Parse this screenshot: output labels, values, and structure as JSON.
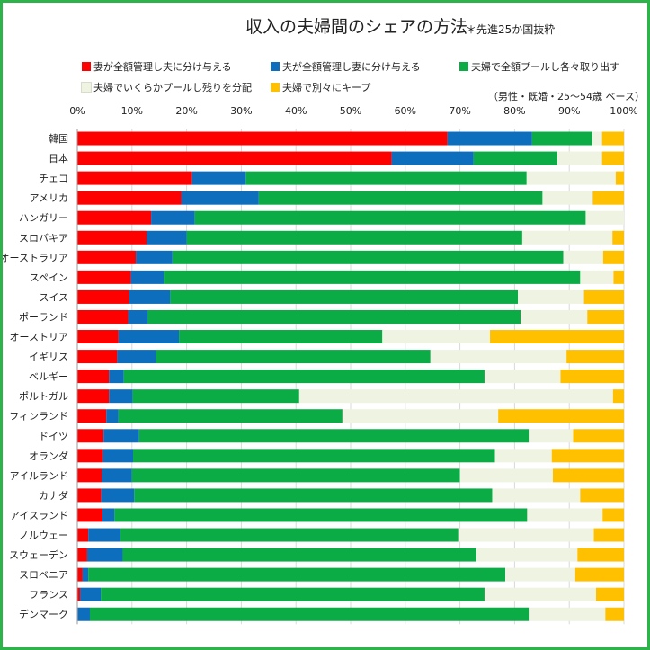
{
  "chart_data": {
    "type": "bar",
    "orientation": "horizontal",
    "stacked": true,
    "title": "収入の夫婦間のシェアの方法",
    "subtitle": "＊先進25か国抜粋",
    "note": "（男性・既婚・25～54歳 ベース）",
    "xlim": [
      0,
      100
    ],
    "x_ticks": [
      "0%",
      "10%",
      "20%",
      "30%",
      "40%",
      "50%",
      "60%",
      "70%",
      "80%",
      "90%",
      "100%"
    ],
    "grid": true,
    "legend_position": "top",
    "categories": [
      "韓国",
      "日本",
      "チェコ",
      "アメリカ",
      "ハンガリー",
      "スロバキア",
      "オーストラリア",
      "スペイン",
      "スイス",
      "ポーランド",
      "オーストリア",
      "イギリス",
      "ベルギー",
      "ポルトガル",
      "フィンランド",
      "ドイツ",
      "オランダ",
      "アイルランド",
      "カナダ",
      "アイスランド",
      "ノルウェー",
      "スウェーデン",
      "スロベニア",
      "フランス",
      "デンマーク"
    ],
    "series": [
      {
        "name": "妻が全額管理し夫に分け与える",
        "color": "#ff0000",
        "values": [
          67.7,
          57.5,
          21.0,
          19.0,
          13.5,
          12.7,
          10.7,
          9.8,
          9.5,
          9.3,
          7.5,
          7.3,
          5.8,
          5.8,
          5.3,
          4.8,
          4.7,
          4.5,
          4.4,
          4.6,
          2.0,
          1.8,
          0.9,
          0.5,
          0.1
        ]
      },
      {
        "name": "夫が全額管理し妻に分け与える",
        "color": "#0d6ebe",
        "values": [
          15.5,
          15.0,
          9.8,
          14.2,
          8.0,
          7.3,
          6.7,
          6.0,
          7.5,
          3.6,
          11.1,
          7.1,
          2.7,
          4.3,
          2.2,
          6.5,
          5.5,
          5.5,
          6.0,
          2.2,
          5.9,
          6.5,
          1.1,
          3.8,
          2.2
        ]
      },
      {
        "name": "夫婦で全額プールし各々取り出す",
        "color": "#0bab46",
        "values": [
          11.0,
          15.3,
          51.4,
          51.9,
          71.5,
          61.4,
          71.5,
          76.2,
          63.6,
          68.2,
          37.2,
          50.2,
          66.0,
          30.5,
          41.0,
          71.3,
          66.2,
          60.0,
          65.5,
          75.5,
          61.8,
          64.7,
          76.3,
          70.2,
          80.3
        ]
      },
      {
        "name": "夫婦でいくらかプールし残りを分配",
        "color": "#eef3e2",
        "values": [
          1.8,
          8.2,
          16.3,
          9.2,
          7.0,
          16.5,
          7.3,
          6.1,
          12.1,
          12.2,
          19.7,
          24.9,
          13.9,
          57.4,
          28.5,
          8.1,
          10.4,
          17.0,
          16.1,
          13.8,
          24.8,
          18.5,
          12.8,
          20.4,
          14.0
        ]
      },
      {
        "name": "夫婦で別々にキープ",
        "color": "#ffc000",
        "values": [
          4.0,
          4.0,
          1.5,
          5.7,
          0.0,
          2.1,
          3.8,
          1.9,
          7.3,
          6.7,
          24.5,
          10.5,
          11.6,
          2.0,
          23.0,
          9.3,
          13.2,
          13.0,
          8.0,
          3.9,
          5.5,
          8.5,
          8.9,
          5.1,
          3.4
        ]
      }
    ]
  }
}
